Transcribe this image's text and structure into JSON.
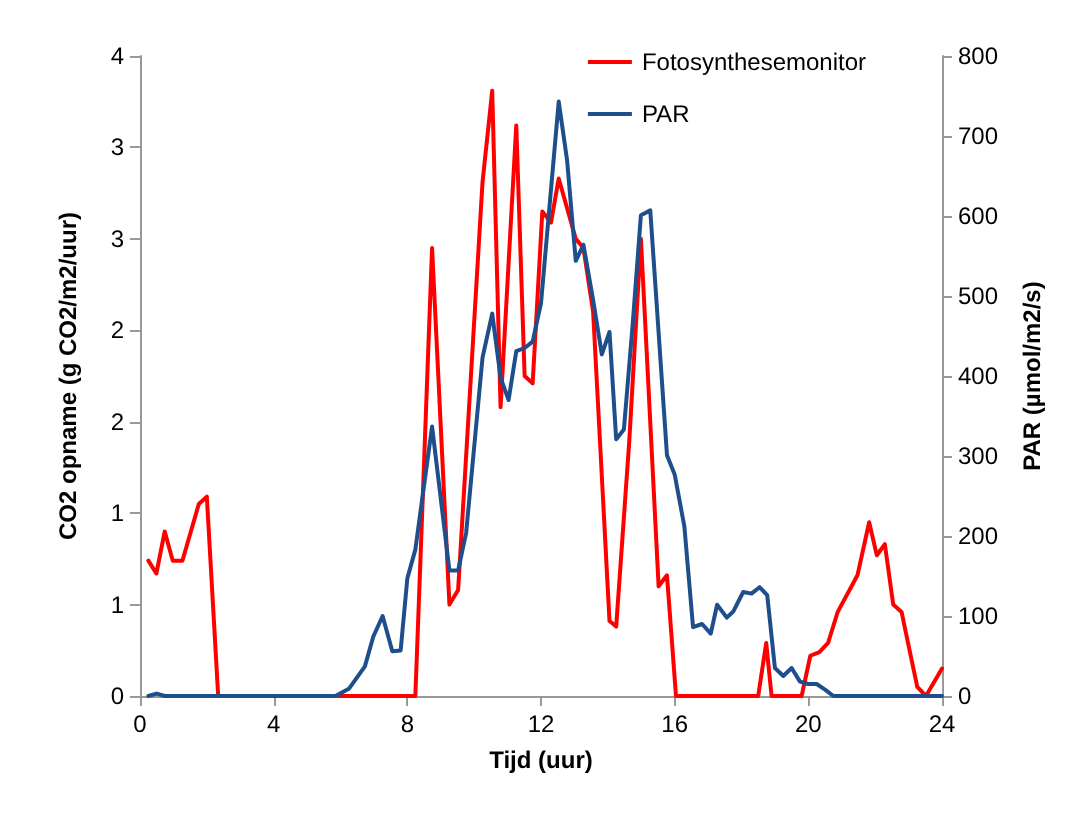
{
  "chart_data": {
    "type": "line",
    "xlabel": "Tijd (uur)",
    "ylabel": "CO2 opname (g CO2/m2/uur)",
    "y2label": "PAR (µmol/m2/s)",
    "xlim": [
      0,
      24
    ],
    "xticks": [
      0,
      4,
      8,
      12,
      16,
      20,
      24
    ],
    "ylim": [
      0,
      3.5
    ],
    "yticks": [
      0,
      {
        "value": 0.5,
        "label": "1"
      },
      1,
      {
        "value": 1.5,
        "label": "2"
      },
      2,
      {
        "value": 2.5,
        "label": "3"
      },
      3,
      {
        "value": 3.5,
        "label": "4"
      }
    ],
    "y2lim": [
      0,
      800
    ],
    "y2ticks": [
      0,
      100,
      200,
      300,
      400,
      500,
      600,
      700,
      800
    ],
    "legend": "top right",
    "grid": false,
    "marker": "none",
    "line_style": "solid",
    "series": [
      {
        "name": "Fotosynthesemonitor",
        "color": "#ff0000",
        "x": [
          0.25,
          0.49,
          0.74,
          0.98,
          1.27,
          1.76,
          2.0,
          2.34,
          4,
          6,
          8.24,
          8.74,
          9.26,
          9.52,
          10.25,
          10.54,
          10.79,
          11.26,
          11.51,
          11.75,
          12.04,
          12.3,
          12.53,
          13.04,
          13.27,
          13.56,
          14.05,
          14.25,
          14.64,
          14.99,
          15.52,
          15.77,
          16.04,
          18.5,
          18.74,
          18.9,
          19.8,
          20.06,
          20.33,
          20.59,
          20.88,
          21.47,
          21.82,
          22.05,
          22.29,
          22.54,
          22.79,
          23.03,
          23.26,
          23.52,
          24
        ],
        "values": [
          0.74,
          0.67,
          0.9,
          0.74,
          0.74,
          1.05,
          1.09,
          0,
          0,
          0,
          0,
          2.45,
          0.5,
          0.58,
          2.81,
          3.31,
          1.58,
          3.12,
          1.75,
          1.71,
          2.65,
          2.59,
          2.83,
          2.5,
          2.45,
          2.1,
          0.41,
          0.38,
          1.39,
          2.5,
          0.6,
          0.66,
          0,
          0,
          0.29,
          0,
          0,
          0.22,
          0.24,
          0.29,
          0.46,
          0.66,
          0.95,
          0.77,
          0.83,
          0.5,
          0.46,
          0.25,
          0.05,
          0,
          0.15
        ]
      },
      {
        "name": "PAR",
        "color": "#1f4e8c",
        "axis": "y2",
        "x": [
          0.25,
          0.5,
          0.74,
          2,
          4,
          5.85,
          6.25,
          6.73,
          6.98,
          7.26,
          7.55,
          7.8,
          8.0,
          8.24,
          8.74,
          9.26,
          9.52,
          9.76,
          10.25,
          10.54,
          10.79,
          11.03,
          11.26,
          11.51,
          11.75,
          12.0,
          12.53,
          12.78,
          13.04,
          13.27,
          13.56,
          13.82,
          14.05,
          14.25,
          14.48,
          14.74,
          14.99,
          15.27,
          15.77,
          16.0,
          16.29,
          16.55,
          16.82,
          17.08,
          17.27,
          17.56,
          17.76,
          18.05,
          18.3,
          18.54,
          18.77,
          19.0,
          19.25,
          19.5,
          19.75,
          20.0,
          20.25,
          20.5,
          20.75,
          22,
          24
        ],
        "values": [
          0,
          3,
          0,
          0,
          0,
          0,
          9,
          37,
          74,
          100,
          56,
          57,
          147,
          183,
          337,
          157,
          157,
          204,
          423,
          478,
          398,
          370,
          431,
          435,
          443,
          491,
          743,
          670,
          544,
          564,
          495,
          427,
          455,
          321,
          333,
          463,
          601,
          607,
          301,
          277,
          212,
          86,
          90,
          78,
          114,
          98,
          106,
          130,
          128,
          136,
          126,
          35,
          25,
          35,
          18,
          15,
          15,
          8,
          0,
          0,
          0
        ]
      }
    ]
  }
}
